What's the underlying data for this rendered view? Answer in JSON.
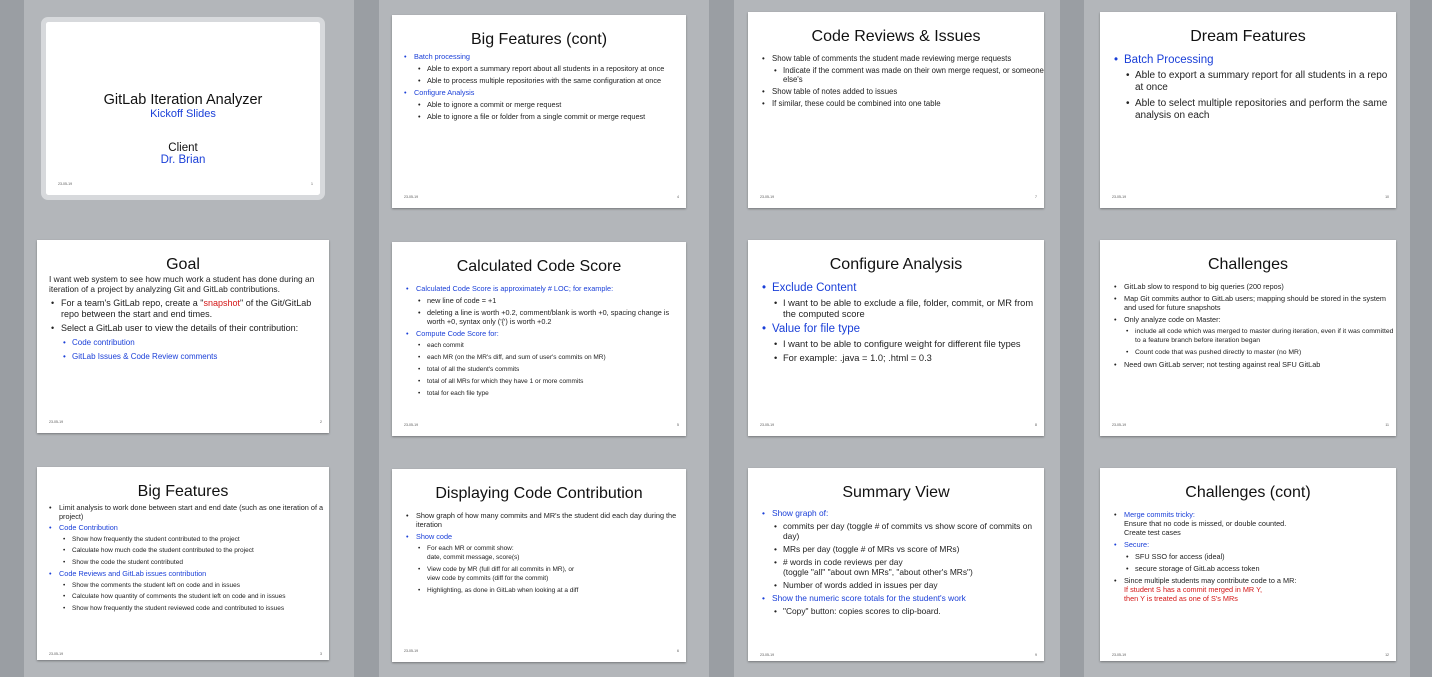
{
  "slides": [
    {
      "title": "GitLab Iteration Analyzer",
      "subtitle": "Kickoff Slides",
      "client_label": "Client",
      "client_name": "Dr. Brian",
      "date": "23-05-19",
      "number": "1"
    },
    {
      "title": "Goal",
      "intro": "I want web system to see how much work a student has done during an iteration of a project by analyzing Git and GitLab contributions.",
      "b1_before": "For a team's GitLab repo, create a \"",
      "b1_highlight": "snapshot",
      "b1_after": "\" of the Git/GitLab repo between the start and end times.",
      "b2": "Select a GitLab user to view the details of their contribution:",
      "s1": "Code contribution",
      "s2": "GitLab Issues & Code Review comments",
      "date": "23-05-19",
      "number": "2"
    },
    {
      "title": "Big Features",
      "b1": "Limit analysis to work done between start and end date (such as one iteration of a project)",
      "b2": "Code Contribution",
      "b2_items": [
        "Show how frequently the student contributed to the project",
        "Calculate how much code the student contributed to the project",
        "Show the code the student contributed"
      ],
      "b3": "Code Reviews and GitLab issues contribution",
      "b3_items": [
        "Show the comments the student left on code and in issues",
        "Calculate how quantity of comments the student left on code and in issues",
        "Show how frequently the student reviewed code and contributed to issues"
      ],
      "date": "23-05-19",
      "number": "3"
    },
    {
      "title": "Big Features (cont)",
      "b1": "Batch processing",
      "b1_items": [
        "Able to export a summary report about all students in a repository at once",
        "Able to process multiple repositories with the same configuration at once"
      ],
      "b2": "Configure Analysis",
      "b2_items": [
        "Able to ignore a commit or merge request",
        "Able to ignore a file or folder from a single commit or merge request"
      ],
      "date": "23-05-19",
      "number": "4"
    },
    {
      "title": "Calculated Code Score",
      "b1": "Calculated Code Score is approximately # LOC; for example:",
      "b1_items": [
        "new line of code = +1",
        "deleting a line is worth +0.2, comment/blank is worth +0, spacing change is worth +0, syntax only ('{') is worth +0.2"
      ],
      "b2": "Compute Code Score for:",
      "b2_items": [
        "each commit",
        "each MR (on the MR's diff, and sum of user's commits on MR)",
        "total of all the student's commits",
        "total of all MRs for which they have 1 or more commits",
        "total for each file type"
      ],
      "date": "23-05-19",
      "number": "5"
    },
    {
      "title": "Displaying Code Contribution",
      "b1": "Show graph of how many commits and MR's the student did each day during the iteration",
      "b2": "Show code",
      "b2_items": [
        "For each MR or commit show:\ndate, commit message, score(s)",
        "View code by MR (full diff for all commits in MR), or\nview code by commits (diff for the commit)",
        "Highlighting, as done in GitLab when looking at a diff"
      ],
      "date": "23-05-19",
      "number": "6"
    },
    {
      "title": "Code Reviews & Issues",
      "b1": "Show table of comments the student made reviewing merge requests",
      "b1_items": [
        "Indicate if the comment was made on their own merge request, or someone else's"
      ],
      "b2": "Show table of notes added to issues",
      "b3": "If similar, these could be combined into one table",
      "date": "23-05-19",
      "number": "7"
    },
    {
      "title": "Configure Analysis",
      "b1": "Exclude Content",
      "b1_items": [
        "I want to be able to exclude a file, folder, commit, or MR from the computed score"
      ],
      "b2": "Value for file type",
      "b2_items": [
        "I want to be able to configure weight for different file types",
        "For example: .java = 1.0; .html = 0.3"
      ],
      "date": "23-05-19",
      "number": "8"
    },
    {
      "title": "Summary View",
      "b1": "Show graph of:",
      "b1_items": [
        "commits per day (toggle # of commits vs show score of commits on day)",
        "MRs per day (toggle # of MRs vs score of MRs)",
        "# words in code reviews per day\n(toggle \"all\" \"about own MRs\", \"about other's MRs\")",
        "Number of words added in issues per day"
      ],
      "b2": "Show the numeric score totals for the student's work",
      "b2_items": [
        "\"Copy\" button: copies scores to clip-board."
      ],
      "date": "23-05-19",
      "number": "9"
    },
    {
      "title": "Dream Features",
      "b1": "Batch Processing",
      "b1_items": [
        "Able to export a summary report for all students in a repo at once",
        "Able to select multiple repositories and perform the same analysis on each"
      ],
      "date": "23-05-19",
      "number": "10"
    },
    {
      "title": "Challenges",
      "items": [
        "GitLab slow to respond to big queries (200 repos)",
        "Map Git commits author to GitLab users; mapping should be stored in the system and used for future snapshots",
        "Only analyze code on Master:"
      ],
      "sub_items": [
        "include all code which was merged to master during iteration, even if it was committed to a feature branch before iteration began",
        "Count code that was pushed directly to master (no MR)"
      ],
      "last": "Need own GitLab server; not testing against real SFU GitLab",
      "date": "23-05-19",
      "number": "11"
    },
    {
      "title": "Challenges (cont)",
      "b1": "Merge commits tricky:",
      "b1_text": "Ensure that no code is missed, or double counted.\nCreate test cases",
      "b2": "Secure:",
      "b2_items": [
        "SFU SSO for access (ideal)",
        "secure storage of GitLab access token"
      ],
      "b3": "Since multiple students may contribute code to a MR:",
      "b3_red_1": "If student S has a commit merged in MR Y,",
      "b3_red_2": "then Y is treated as one of S's MRs",
      "date": "23-05-19",
      "number": "12"
    }
  ]
}
